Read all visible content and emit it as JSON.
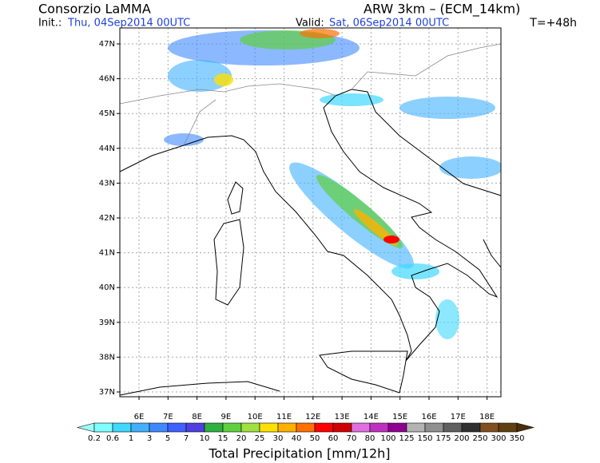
{
  "header": {
    "title": "Consorzio LaMMA",
    "model": "ARW 3km – (ECM_14km)",
    "init_label": "Init.:",
    "init_value": "Thu, 04Sep2014 00UTC",
    "valid_label": "Valid:",
    "valid_value": "Sat, 06Sep2014 00UTC",
    "forecast_time": "T=+48h"
  },
  "map": {
    "lat_labels": [
      "47N",
      "46N",
      "45N",
      "44N",
      "43N",
      "42N",
      "41N",
      "40N",
      "39N",
      "38N",
      "37N"
    ],
    "lon_labels": [
      "6E",
      "7E",
      "8E",
      "9E",
      "10E",
      "11E",
      "12E",
      "13E",
      "14E",
      "15E",
      "16E",
      "17E",
      "18E"
    ]
  },
  "colorbar": {
    "labels": [
      "0.2",
      "0.6",
      "1",
      "3",
      "5",
      "7",
      "10",
      "15",
      "20",
      "25",
      "30",
      "40",
      "50",
      "60",
      "70",
      "80",
      "100",
      "125",
      "150",
      "175",
      "200",
      "250",
      "300",
      "350"
    ],
    "colors": [
      "#a0fff8",
      "#80ffff",
      "#40d8ff",
      "#40b0ff",
      "#4088ff",
      "#4060ff",
      "#5040e0",
      "#30b040",
      "#60d040",
      "#a0e040",
      "#ffe000",
      "#ffb000",
      "#ff7000",
      "#ff0000",
      "#d00000",
      "#e070e0",
      "#c030c0",
      "#900090",
      "#b4b4b4",
      "#909090",
      "#606060",
      "#303030",
      "#805020",
      "#604010",
      "#4a2e08"
    ],
    "title": "Total Precipitation [mm/12h]"
  }
}
